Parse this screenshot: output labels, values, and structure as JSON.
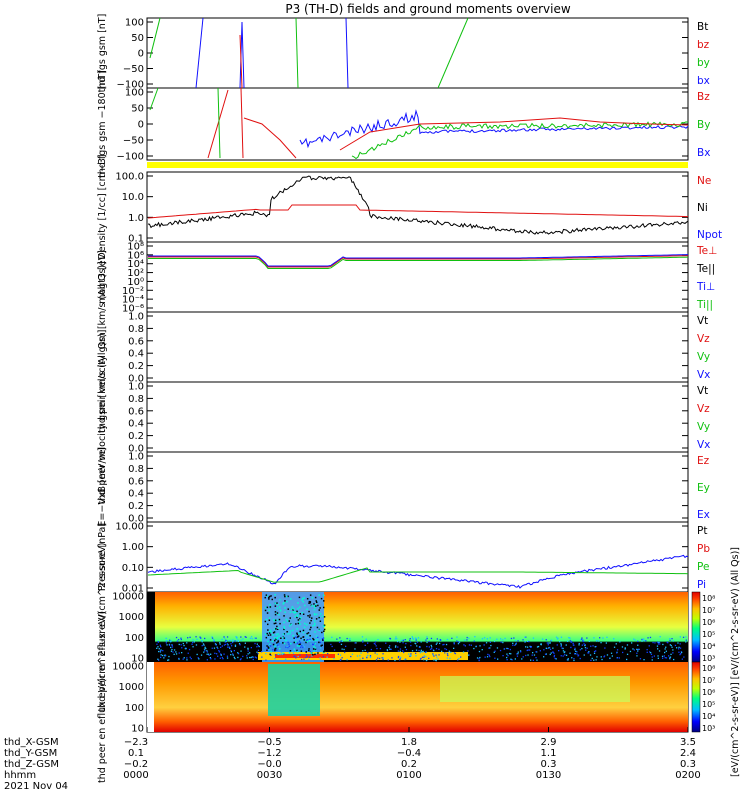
{
  "title": "P3 (TH-D) fields and ground moments overview",
  "colors": {
    "black": "#000000",
    "red": "#e01010",
    "green": "#10c010",
    "blue": "#1010ff",
    "yellow": "#ffff00"
  },
  "chart_data": [
    {
      "type": "line",
      "ylabel": "thd fgs gsm [nT]",
      "yticks": [
        "100",
        "50",
        "0",
        "−50",
        "−100"
      ],
      "ylim": [
        -100,
        100
      ],
      "legend": [
        "Bt",
        "bz",
        "by",
        "bx"
      ],
      "legend_colors": [
        "#000000",
        "#e01010",
        "#10c010",
        "#1010ff"
      ]
    },
    {
      "type": "line",
      "ylabel": "thd fgs gsm −180 [nT]",
      "yticks": [
        "100",
        "50",
        "0",
        "−50",
        "−100"
      ],
      "ylim": [
        -130,
        100
      ],
      "legend": [
        "Bz",
        "By",
        "Bx"
      ],
      "legend_colors": [
        "#e01010",
        "#10c010",
        "#1010ff"
      ]
    },
    {
      "type": "line",
      "scale": "log",
      "ylabel": "Density [1/cc] [cm−3]",
      "yticks": [
        "100.0",
        "10.0",
        "1.0",
        "0.1"
      ],
      "legend": [
        "Ne",
        "Ni",
        "Npot"
      ],
      "legend_colors": [
        "#e01010",
        "#000000",
        "#1010ff"
      ]
    },
    {
      "type": "line",
      "scale": "log",
      "ylabel": "mogt3 [eV]",
      "yticks": [
        "10⁸",
        "10⁶",
        "10⁴",
        "10²",
        "10⁰",
        "10⁻²",
        "10⁻⁴",
        "10⁻⁶"
      ],
      "legend": [
        "Te⊥",
        "Te||",
        "Ti⊥",
        "Ti||"
      ],
      "legend_colors": [
        "#e01010",
        "#000000",
        "#1010ff",
        "#10c010"
      ]
    },
    {
      "type": "line",
      "ylabel": "thd peir velocity gsm [km/s (All Qs)]",
      "yticks": [
        "1.0",
        "0.8",
        "0.6",
        "0.4",
        "0.2",
        "0.0"
      ],
      "ylim": [
        0,
        1
      ],
      "legend": [
        "Vt",
        "Vz",
        "Vy",
        "Vx"
      ],
      "legend_colors": [
        "#000000",
        "#e01010",
        "#10c010",
        "#1010ff"
      ]
    },
    {
      "type": "line",
      "ylabel": "thd peer velocity gsm [km/s (All Qs)]",
      "yticks": [
        "1.0",
        "0.8",
        "0.6",
        "0.4",
        "0.2",
        "0.0"
      ],
      "ylim": [
        0,
        1
      ],
      "legend": [
        "Vt",
        "Vz",
        "Vy",
        "Vx"
      ],
      "legend_colors": [
        "#000000",
        "#e01010",
        "#10c010",
        "#1010ff"
      ]
    },
    {
      "type": "line",
      "ylabel": "E=−VxB [mV/m]",
      "yticks": [
        "1.0",
        "0.8",
        "0.6",
        "0.4",
        "0.2",
        "0.0"
      ],
      "ylim": [
        0,
        1
      ],
      "legend": [
        "Ez",
        "Ey",
        "Ex"
      ],
      "legend_colors": [
        "#e01010",
        "#10c010",
        "#1010ff"
      ]
    },
    {
      "type": "line",
      "scale": "log",
      "ylabel": "Pressure [nPa]",
      "yticks": [
        "10.00",
        "1.00",
        "0.10",
        "0.01"
      ],
      "legend": [
        "Pt",
        "Pb",
        "Pe",
        "Pi"
      ],
      "legend_colors": [
        "#000000",
        "#e01010",
        "#10c010",
        "#1010ff"
      ]
    },
    {
      "type": "heatmap",
      "ylabel": "thd peir en eflux eV/(cm^2-s-sr-eV)",
      "yticks": [
        "10000",
        "1000",
        "100",
        "10"
      ],
      "colorbar_ticks": [
        "10⁸",
        "10⁷",
        "10⁶",
        "10⁵",
        "10⁴",
        "10³"
      ]
    },
    {
      "type": "heatmap",
      "ylabel": "thd peer en eflux eV/(cm^2-s-sr-eV)",
      "yticks": [
        "10000",
        "1000",
        "100",
        "10"
      ],
      "colorbar_ticks": [
        "10⁸",
        "10⁷",
        "10⁶",
        "10⁵",
        "10⁴",
        "10³"
      ]
    }
  ],
  "colorbar_label": "[eV/(cm^2-s-sr-eV)] [eV/(cm^2-s-sr-eV) (All Qs)]",
  "xaxis": {
    "row_labels": [
      "thd_X-GSM",
      "thd_Y-GSM",
      "thd_Z-GSM",
      "hhmm",
      "2021 Nov 04"
    ],
    "columns": [
      {
        "x": "−2.3",
        "y": "0.1",
        "z": "−0.2",
        "t": "0000"
      },
      {
        "x": "−0.5",
        "y": "−1.2",
        "z": "−0.0",
        "t": "0030"
      },
      {
        "x": "1.8",
        "y": "−0.4",
        "z": "0.2",
        "t": "0100"
      },
      {
        "x": "2.9",
        "y": "1.1",
        "z": "0.3",
        "t": "0130"
      },
      {
        "x": "3.5",
        "y": "2.4",
        "z": "0.3",
        "t": "0200"
      }
    ]
  }
}
